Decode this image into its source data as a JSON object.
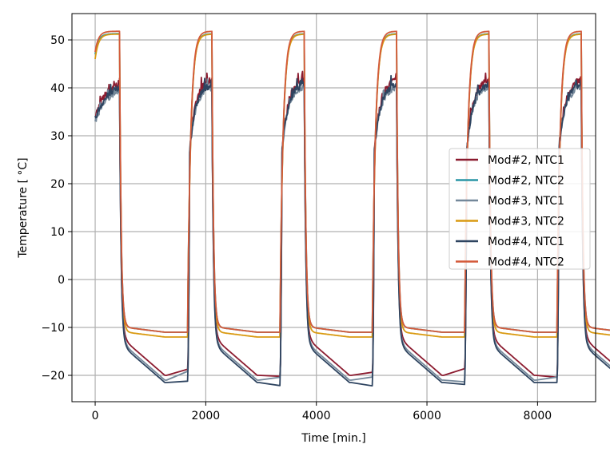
{
  "chart_data": {
    "type": "line",
    "title": "",
    "xlabel": "Time [min.]",
    "ylabel": "Temperature [$^\\circ$C]",
    "ylabel_display": "Temperature [ °C]",
    "xlim": [
      -420,
      9050
    ],
    "ylim": [
      -25.5,
      55.5
    ],
    "xticks": [
      0,
      2000,
      4000,
      6000,
      8000
    ],
    "yticks": [
      -20,
      -10,
      0,
      10,
      20,
      30,
      40,
      50
    ],
    "grid": true,
    "legend_position": "center-right",
    "cycle": {
      "period": 1670,
      "heat_start": 0,
      "heat_end": 440,
      "cool_end": 1290
    },
    "series": [
      {
        "name": "Mod#2, NTC1",
        "color": "#8b1a2e",
        "hot_start": 34,
        "hot_end": 42,
        "cold_plateau": -13,
        "cold_end": -20,
        "profile": "inner"
      },
      {
        "name": "Mod#2, NTC2",
        "color": "#2a96a6",
        "hot_start": 47,
        "hot_end": 51.3,
        "cold_plateau": -10,
        "cold_end": -11,
        "profile": "outer"
      },
      {
        "name": "Mod#3, NTC1",
        "color": "#74889a",
        "hot_start": 33,
        "hot_end": 40.5,
        "cold_plateau": -14,
        "cold_end": -21,
        "profile": "inner"
      },
      {
        "name": "Mod#3, NTC2",
        "color": "#d99a12",
        "hot_start": 46,
        "hot_end": 51.2,
        "cold_plateau": -11,
        "cold_end": -12,
        "profile": "outer"
      },
      {
        "name": "Mod#4, NTC1",
        "color": "#2e4460",
        "hot_start": 33.5,
        "hot_end": 41,
        "cold_plateau": -14.5,
        "cold_end": -21.5,
        "profile": "inner"
      },
      {
        "name": "Mod#4, NTC2",
        "color": "#d45a3a",
        "hot_start": 47.5,
        "hot_end": 51.8,
        "cold_plateau": -10,
        "cold_end": -11,
        "profile": "outer"
      }
    ]
  }
}
